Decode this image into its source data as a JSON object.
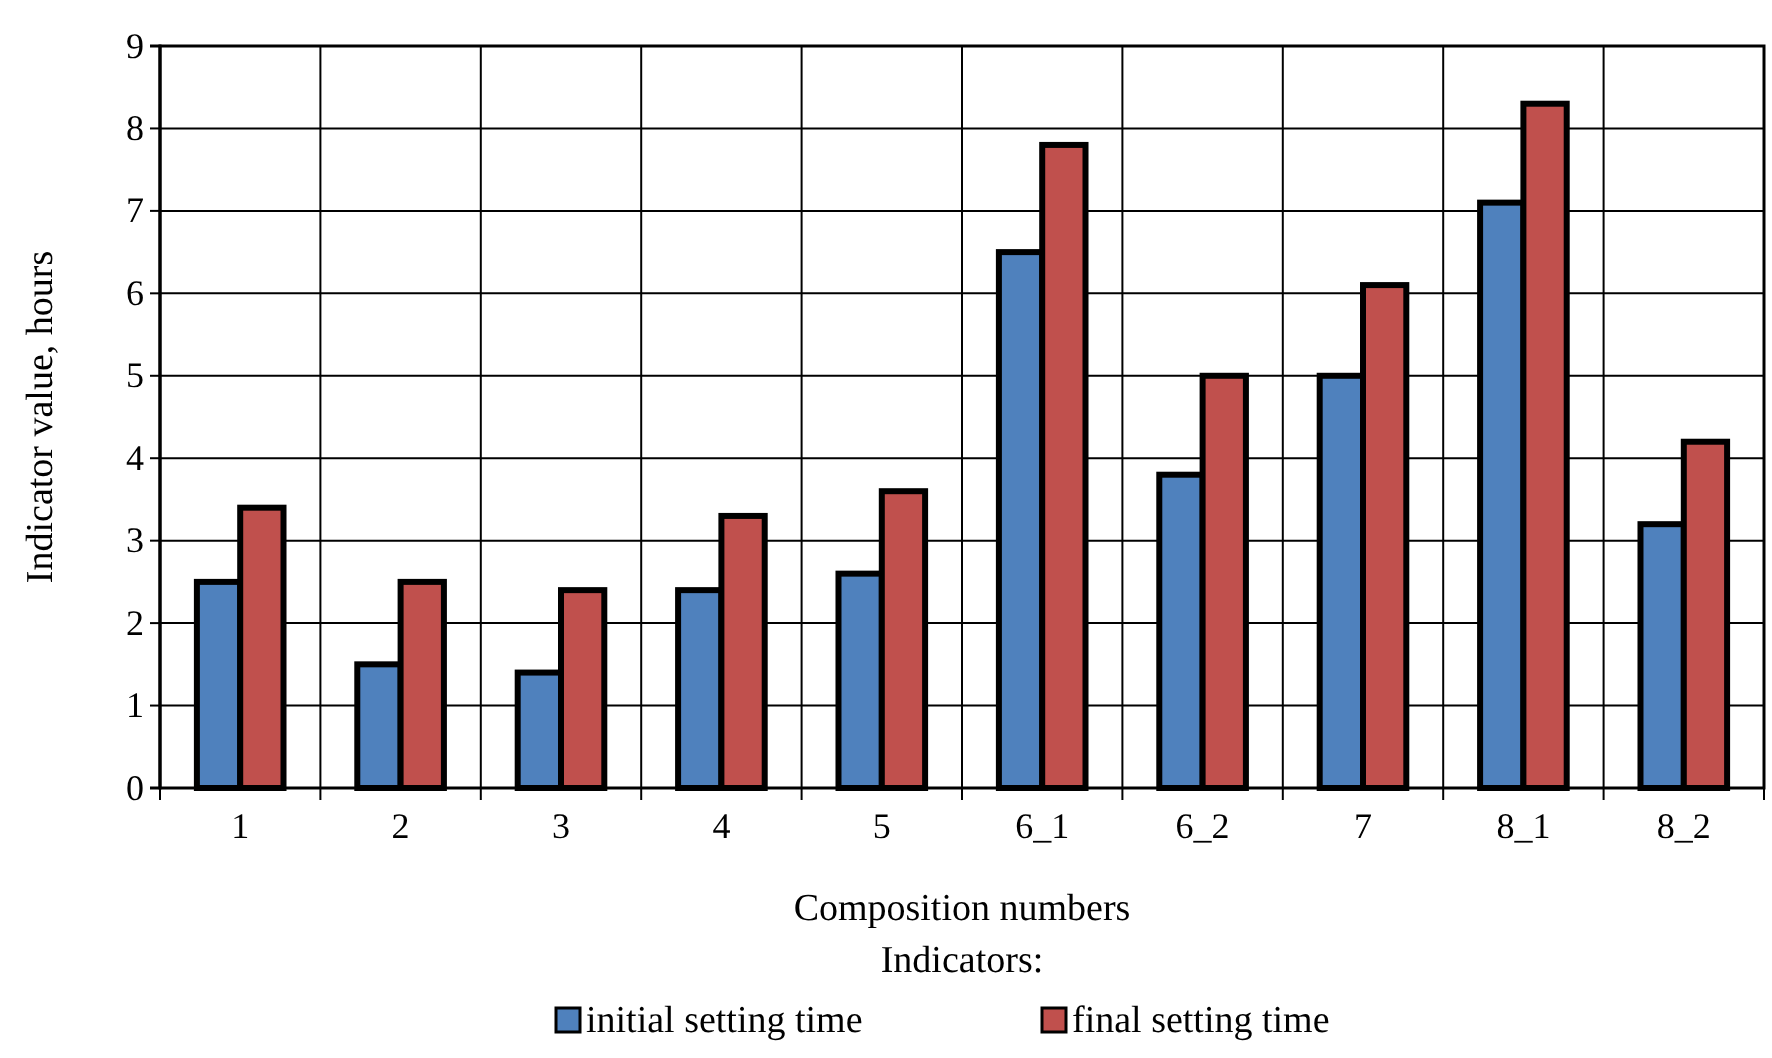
{
  "chart_data": {
    "type": "bar",
    "xlabel": "Composition numbers",
    "ylabel": "Indicator value, hours",
    "legend_title": "Indicators:",
    "categories": [
      "1",
      "2",
      "3",
      "4",
      "5",
      "6_1",
      "6_2",
      "7",
      "8_1",
      "8_2"
    ],
    "series": [
      {
        "name": "initial setting time",
        "color": "#4f81bd",
        "values": [
          2.5,
          1.5,
          1.4,
          2.4,
          2.6,
          6.5,
          3.8,
          5.0,
          7.1,
          3.2
        ]
      },
      {
        "name": "final setting time",
        "color": "#c0504d",
        "values": [
          3.4,
          2.5,
          2.4,
          3.3,
          3.6,
          7.8,
          5.0,
          6.1,
          8.3,
          4.2
        ]
      }
    ],
    "ylim": [
      0,
      9
    ],
    "yticks": [
      0,
      1,
      2,
      3,
      4,
      5,
      6,
      7,
      8,
      9
    ],
    "grid": true,
    "legend": "bottom"
  }
}
